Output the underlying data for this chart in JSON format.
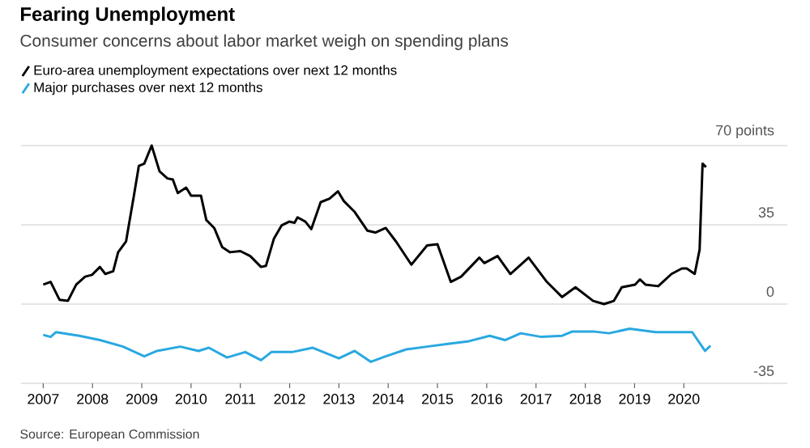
{
  "chart_data": {
    "type": "line",
    "title": "Fearing Unemployment",
    "subtitle": "Consumer concerns about labor market weigh on spending plans",
    "xlim": [
      2006.55,
      2022.1
    ],
    "xticks": [
      2007,
      2008,
      2009,
      2010,
      2011,
      2012,
      2013,
      2014,
      2015,
      2016,
      2017,
      2018,
      2019,
      2020
    ],
    "ylim": [
      -35,
      70
    ],
    "yticks": [
      {
        "value": -35,
        "label": "-35"
      },
      0,
      35,
      {
        "value": 70,
        "label": "70 points"
      }
    ],
    "grid": "y",
    "legend": "top left",
    "annotations": [
      "Source: European Commission"
    ],
    "series": [
      {
        "name": "Euro-area unemployment expectations over next 12 months",
        "color": "#000000",
        "x": [
          2007.0,
          2007.15,
          2007.33,
          2007.5,
          2007.67,
          2007.85,
          2007.99,
          2008.15,
          2008.26,
          2008.42,
          2008.52,
          2008.68,
          2008.84,
          2008.94,
          2009.05,
          2009.2,
          2009.36,
          2009.52,
          2009.63,
          2009.73,
          2009.9,
          2010.0,
          2010.2,
          2010.31,
          2010.47,
          2010.63,
          2010.79,
          2011.0,
          2011.2,
          2011.42,
          2011.52,
          2011.68,
          2011.84,
          2011.99,
          2012.1,
          2012.16,
          2012.32,
          2012.44,
          2012.63,
          2012.81,
          2012.98,
          2013.1,
          2013.32,
          2013.58,
          2013.74,
          2013.95,
          2014.16,
          2014.47,
          2014.79,
          2015.0,
          2015.27,
          2015.48,
          2015.85,
          2015.95,
          2016.22,
          2016.48,
          2016.85,
          2017.22,
          2017.53,
          2017.8,
          2018.16,
          2018.38,
          2018.58,
          2018.74,
          2019.01,
          2019.11,
          2019.22,
          2019.48,
          2019.75,
          2019.96,
          2020.06,
          2020.22,
          2020.32,
          2020.38,
          2020.45
        ],
        "values": [
          8.6,
          9.8,
          1.9,
          1.4,
          8.6,
          12.1,
          12.9,
          16.4,
          13.3,
          14.5,
          22.9,
          27.6,
          47.9,
          61,
          62,
          70,
          58.6,
          55.5,
          55,
          49,
          51.4,
          47.9,
          47.9,
          37.1,
          33.6,
          25.2,
          22.9,
          23.4,
          21.2,
          16.4,
          16.9,
          28.8,
          34.8,
          36.4,
          35.9,
          38.3,
          36.4,
          33.1,
          45,
          46.6,
          49.8,
          45.5,
          40.7,
          32.4,
          31.6,
          33.6,
          27.6,
          17.4,
          25.9,
          26.4,
          9.8,
          12.1,
          20.5,
          18.1,
          21.2,
          13.3,
          20.5,
          9.8,
          3.1,
          7.4,
          1.4,
          0,
          1.4,
          7.4,
          8.6,
          10.9,
          8.6,
          7.9,
          13.3,
          15.7,
          15.7,
          13.3,
          24,
          62,
          60.5
        ]
      },
      {
        "name": "Major purchases over next 12 months",
        "color": "#29a8e0",
        "x": [
          2007.0,
          2007.15,
          2007.26,
          2007.73,
          2008.15,
          2008.62,
          2009.05,
          2009.31,
          2009.78,
          2010.15,
          2010.36,
          2010.73,
          2011.1,
          2011.42,
          2011.63,
          2012.05,
          2012.47,
          2013.0,
          2013.32,
          2013.65,
          2013.95,
          2014.37,
          2014.79,
          2015.21,
          2015.64,
          2016.06,
          2016.37,
          2016.69,
          2017.11,
          2017.53,
          2017.74,
          2018.16,
          2018.48,
          2018.9,
          2019.43,
          2020.17,
          2020.43,
          2020.54
        ],
        "values": [
          -13.6,
          -14.5,
          -12.4,
          -14,
          -15.9,
          -18.8,
          -23.1,
          -20.7,
          -18.8,
          -20.7,
          -19.3,
          -23.6,
          -21.2,
          -24.8,
          -21.2,
          -21.2,
          -19.3,
          -24,
          -20.7,
          -25.5,
          -23.1,
          -20,
          -18.8,
          -17.6,
          -16.4,
          -14,
          -15.9,
          -12.9,
          -14.5,
          -14,
          -12.1,
          -12.1,
          -12.9,
          -10.9,
          -12.4,
          -12.4,
          -20.7,
          -18.4
        ]
      }
    ]
  }
}
